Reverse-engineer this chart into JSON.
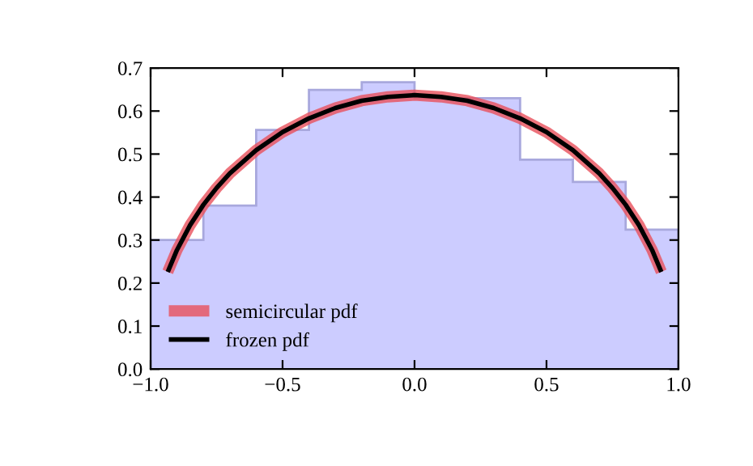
{
  "chart_data": {
    "type": "histogram",
    "bins": [
      -1.0,
      -0.8,
      -0.6,
      -0.4,
      -0.2,
      0.0,
      0.2,
      0.4,
      0.6,
      0.8,
      1.0
    ],
    "values": [
      0.3,
      0.38,
      0.556,
      0.649,
      0.667,
      0.63,
      0.63,
      0.487,
      0.435,
      0.324
    ],
    "color": "#ccccff",
    "series": [
      {
        "name": "semicircular pdf",
        "type": "line",
        "color": "#e8505b",
        "x": [
          -0.935,
          -0.9,
          -0.85,
          -0.8,
          -0.75,
          -0.7,
          -0.6,
          -0.5,
          -0.4,
          -0.3,
          -0.2,
          -0.1,
          0.0,
          0.1,
          0.2,
          0.3,
          0.4,
          0.5,
          0.6,
          0.7,
          0.75,
          0.8,
          0.85,
          0.9,
          0.935
        ],
        "values": [
          0.226,
          0.277,
          0.335,
          0.382,
          0.421,
          0.455,
          0.509,
          0.551,
          0.583,
          0.607,
          0.624,
          0.633,
          0.637,
          0.633,
          0.624,
          0.607,
          0.583,
          0.551,
          0.509,
          0.455,
          0.421,
          0.382,
          0.335,
          0.277,
          0.226
        ]
      },
      {
        "name": "frozen pdf",
        "type": "line",
        "color": "#000000",
        "x": [
          -0.935,
          -0.9,
          -0.85,
          -0.8,
          -0.75,
          -0.7,
          -0.6,
          -0.5,
          -0.4,
          -0.3,
          -0.2,
          -0.1,
          0.0,
          0.1,
          0.2,
          0.3,
          0.4,
          0.5,
          0.6,
          0.7,
          0.75,
          0.8,
          0.85,
          0.9,
          0.935
        ],
        "values": [
          0.226,
          0.277,
          0.335,
          0.382,
          0.421,
          0.455,
          0.509,
          0.551,
          0.583,
          0.607,
          0.624,
          0.633,
          0.637,
          0.633,
          0.624,
          0.607,
          0.583,
          0.551,
          0.509,
          0.455,
          0.421,
          0.382,
          0.335,
          0.277,
          0.226
        ]
      }
    ],
    "xlim": [
      -1.0,
      1.0
    ],
    "xticks": [
      {
        "value": -1.0,
        "label": "−1.0"
      },
      {
        "value": -0.5,
        "label": "−0.5"
      },
      {
        "value": 0.0,
        "label": "0.0"
      },
      {
        "value": 0.5,
        "label": "0.5"
      },
      {
        "value": 1.0,
        "label": "1.0"
      }
    ],
    "ylim": [
      0.0,
      0.7
    ],
    "yticks": [
      {
        "value": 0.0,
        "label": "0.0"
      },
      {
        "value": 0.1,
        "label": "0.1"
      },
      {
        "value": 0.2,
        "label": "0.2"
      },
      {
        "value": 0.3,
        "label": "0.3"
      },
      {
        "value": 0.4,
        "label": "0.4"
      },
      {
        "value": 0.5,
        "label": "0.5"
      },
      {
        "value": 0.6,
        "label": "0.6"
      },
      {
        "value": 0.7,
        "label": "0.7"
      }
    ],
    "legend": "bottom left",
    "grid": false
  }
}
